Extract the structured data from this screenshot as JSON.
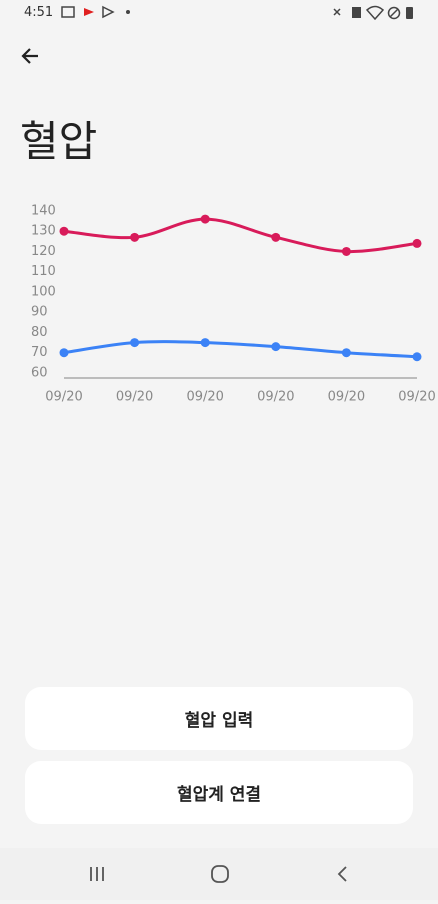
{
  "status_bar": {
    "time": "4:51"
  },
  "header": {
    "title": "혈압"
  },
  "buttons": [
    "혈압 입력",
    "혈압계 연결"
  ],
  "chart_data": {
    "type": "line",
    "categories": [
      "09/20",
      "09/20",
      "09/20",
      "09/20",
      "09/20",
      "09/20"
    ],
    "series": [
      {
        "color": "#d81b5a",
        "values": [
          130,
          127,
          136,
          127,
          120,
          124
        ]
      },
      {
        "color": "#3b82f6",
        "values": [
          70,
          75,
          75,
          73,
          70,
          68
        ]
      }
    ],
    "ylim": [
      57.5,
      140
    ],
    "yticks": [
      60,
      70,
      80,
      90,
      100,
      110,
      120,
      130,
      140
    ],
    "grid": false
  }
}
